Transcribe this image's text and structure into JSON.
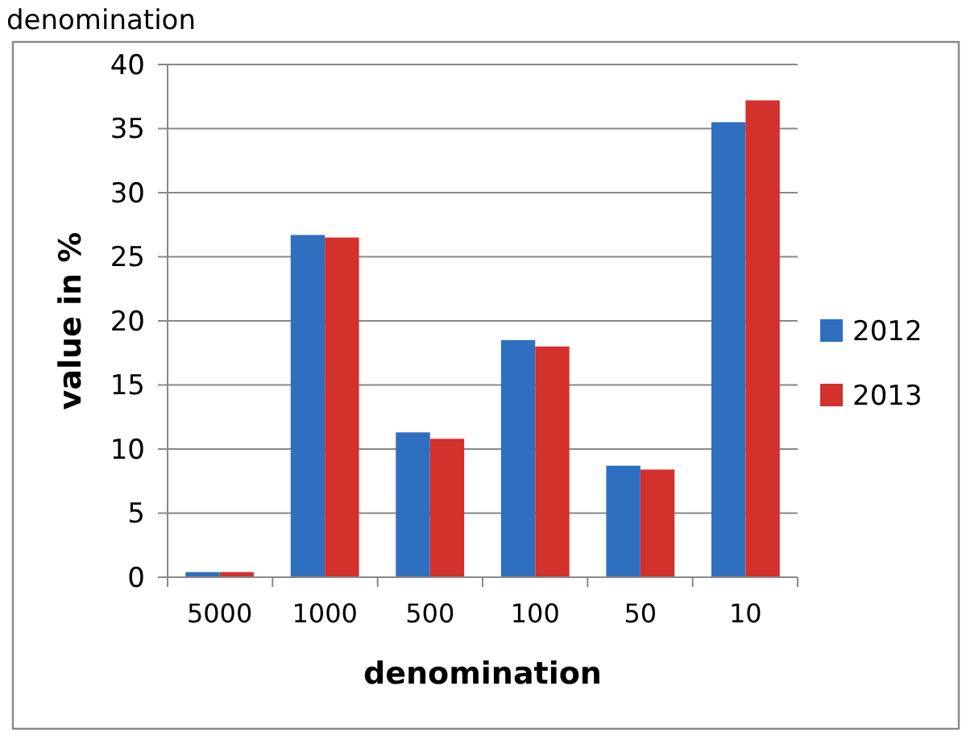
{
  "chart_data": {
    "type": "bar",
    "title": "denomination",
    "xlabel": "denomination",
    "ylabel": "value in %",
    "categories": [
      "5000",
      "1000",
      "500",
      "100",
      "50",
      "10"
    ],
    "series": [
      {
        "name": "2012",
        "color": "#2e6fc0",
        "values": [
          0.4,
          26.7,
          11.3,
          18.5,
          8.7,
          35.5
        ]
      },
      {
        "name": "2013",
        "color": "#d2312c",
        "values": [
          0.4,
          26.5,
          10.8,
          18.0,
          8.4,
          37.2
        ]
      }
    ],
    "ylim": [
      0,
      40
    ],
    "yticks": [
      0,
      5,
      10,
      15,
      20,
      25,
      30,
      35,
      40
    ],
    "grid": "y",
    "legend": "right"
  }
}
